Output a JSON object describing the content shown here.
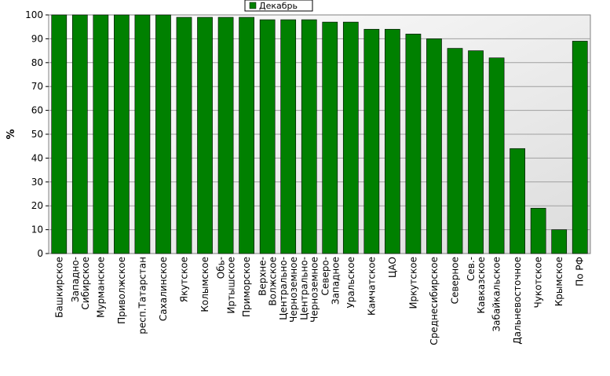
{
  "chart_data": {
    "type": "bar",
    "title": "",
    "xlabel": "",
    "ylabel": "%",
    "ylim": [
      0,
      100
    ],
    "yticks": [
      0,
      10,
      20,
      30,
      40,
      50,
      60,
      70,
      80,
      90,
      100
    ],
    "grid": true,
    "legend_position": "top-center",
    "bar_color": "#008000",
    "categories": [
      "Башкирское",
      "Западно-Сибирское",
      "Мурманское",
      "Приволжское",
      "респ.Татарстан",
      "Сахалинское",
      "Якутское",
      "Колымское",
      "Обь-Иртышское",
      "Приморское",
      "Верхне-Волжское",
      "Центрально-Черноземное",
      "Центрально-Черноземное",
      "Северо-Западное",
      "Уральское",
      "Камчатское",
      "ЦАО",
      "Иркутское",
      "Среднесибирское",
      "Северное",
      "Сев.-Кавказское",
      "Забайкальское",
      "Дальневосточное",
      "Чукотское",
      "Крымское",
      "По РФ"
    ],
    "series": [
      {
        "name": "Декабрь",
        "values": [
          100,
          100,
          100,
          100,
          100,
          100,
          99,
          99,
          99,
          99,
          98,
          98,
          98,
          97,
          97,
          94,
          94,
          92,
          90,
          86,
          85,
          82,
          44,
          19,
          10,
          89
        ]
      }
    ]
  }
}
